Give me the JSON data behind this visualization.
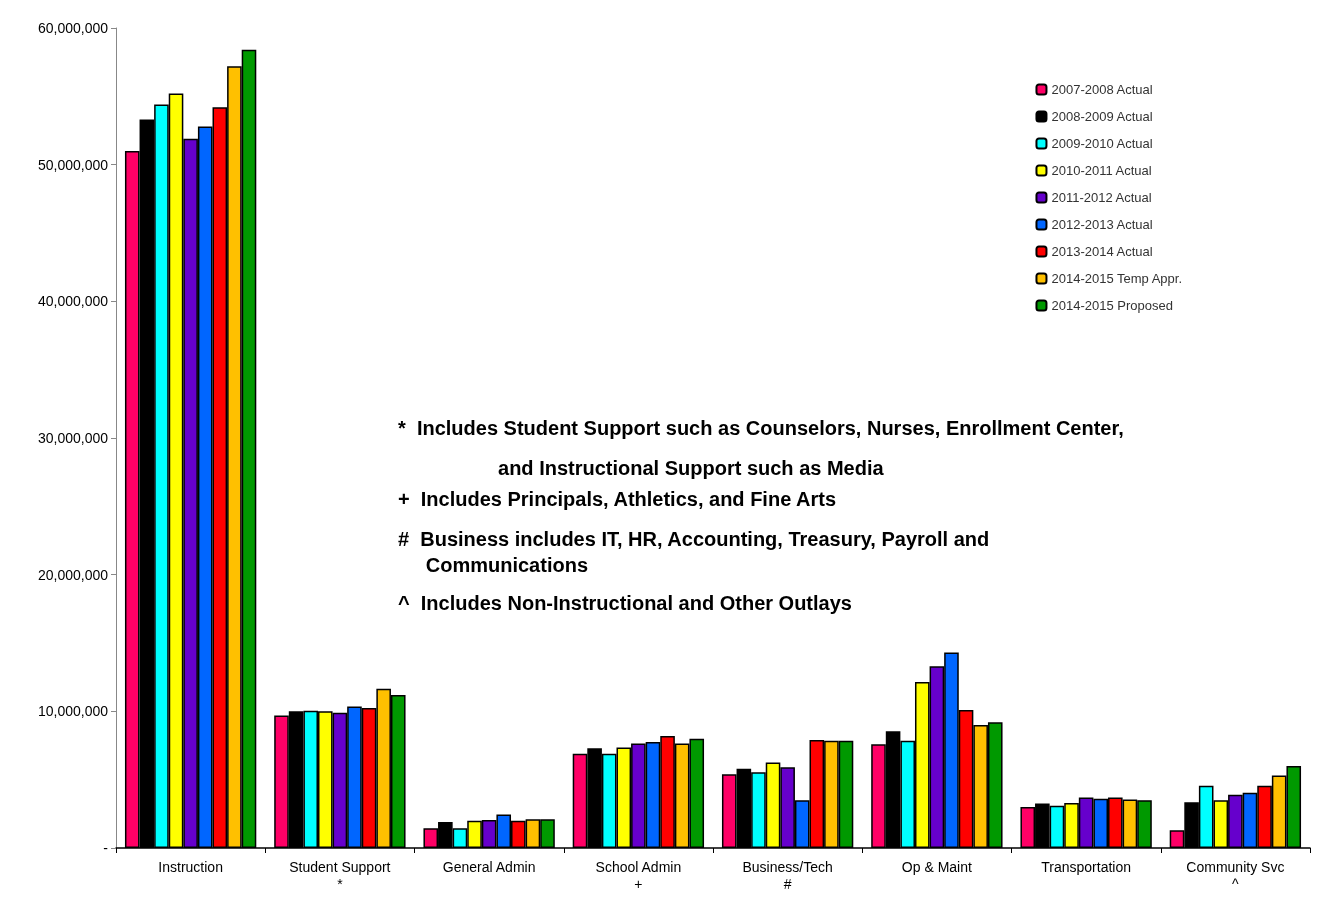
{
  "chart_data": {
    "type": "bar",
    "categories": [
      "Instruction",
      "Student Support\n*",
      "General Admin",
      "School Admin\n+",
      "Business/Tech\n#",
      "Op & Maint",
      "Transportation",
      "Community Svc\n^"
    ],
    "series": [
      {
        "name": "2007-2008 Actual",
        "color": "#ff0066",
        "values": [
          51000000,
          9700000,
          1450000,
          6900000,
          5400000,
          7600000,
          3000000,
          1300000
        ]
      },
      {
        "name": "2008-2009 Actual",
        "color": "#000000",
        "values": [
          53300000,
          10000000,
          1900000,
          7300000,
          5800000,
          8550000,
          3250000,
          3350000
        ]
      },
      {
        "name": "2009-2010 Actual",
        "color": "#00ffff",
        "values": [
          54400000,
          10050000,
          1450000,
          6900000,
          5550000,
          7850000,
          3100000,
          4550000
        ]
      },
      {
        "name": "2010-2011 Actual",
        "color": "#ffff00",
        "values": [
          55200000,
          10000000,
          2000000,
          7350000,
          6250000,
          12150000,
          3300000,
          3500000
        ]
      },
      {
        "name": "2011-2012 Actual",
        "color": "#6600cc",
        "values": [
          51900000,
          9900000,
          2050000,
          7650000,
          5900000,
          13300000,
          3700000,
          3900000
        ]
      },
      {
        "name": "2012-2013 Actual",
        "color": "#0066ff",
        "values": [
          52800000,
          10350000,
          2450000,
          7750000,
          3500000,
          14300000,
          3600000,
          4050000
        ]
      },
      {
        "name": "2013-2014 Actual",
        "color": "#ff0000",
        "values": [
          54200000,
          10250000,
          2000000,
          8200000,
          7900000,
          10100000,
          3700000,
          4550000
        ]
      },
      {
        "name": "2014-2015 Temp Appr.",
        "color": "#ffc000",
        "values": [
          57200000,
          11650000,
          2100000,
          7650000,
          7850000,
          9000000,
          3550000,
          5300000
        ]
      },
      {
        "name": "2014-2015 Proposed",
        "color": "#009900",
        "values": [
          58400000,
          11200000,
          2100000,
          8000000,
          7850000,
          9200000,
          3500000,
          6000000
        ]
      }
    ],
    "ylim": [
      0,
      60000000
    ],
    "yticks": [
      {
        "value": 0,
        "label": "-"
      },
      {
        "value": 10000000,
        "label": "10,000,000"
      },
      {
        "value": 20000000,
        "label": "20,000,000"
      },
      {
        "value": 30000000,
        "label": "30,000,000"
      },
      {
        "value": 40000000,
        "label": "40,000,000"
      },
      {
        "value": 50000000,
        "label": "50,000,000"
      },
      {
        "value": 60000000,
        "label": "60,000,000"
      }
    ],
    "annotations": [
      "*  Includes Student Support such as Counselors, Nurses, Enrollment Center,\n                  and Instructional Support such as Media",
      "+  Includes Principals, Athletics, and Fine Arts",
      "#  Business includes IT, HR, Accounting, Treasury, Payroll and\n     Communications",
      "^  Includes Non-Instructional and Other Outlays"
    ],
    "grid": false,
    "legend": "top right"
  }
}
